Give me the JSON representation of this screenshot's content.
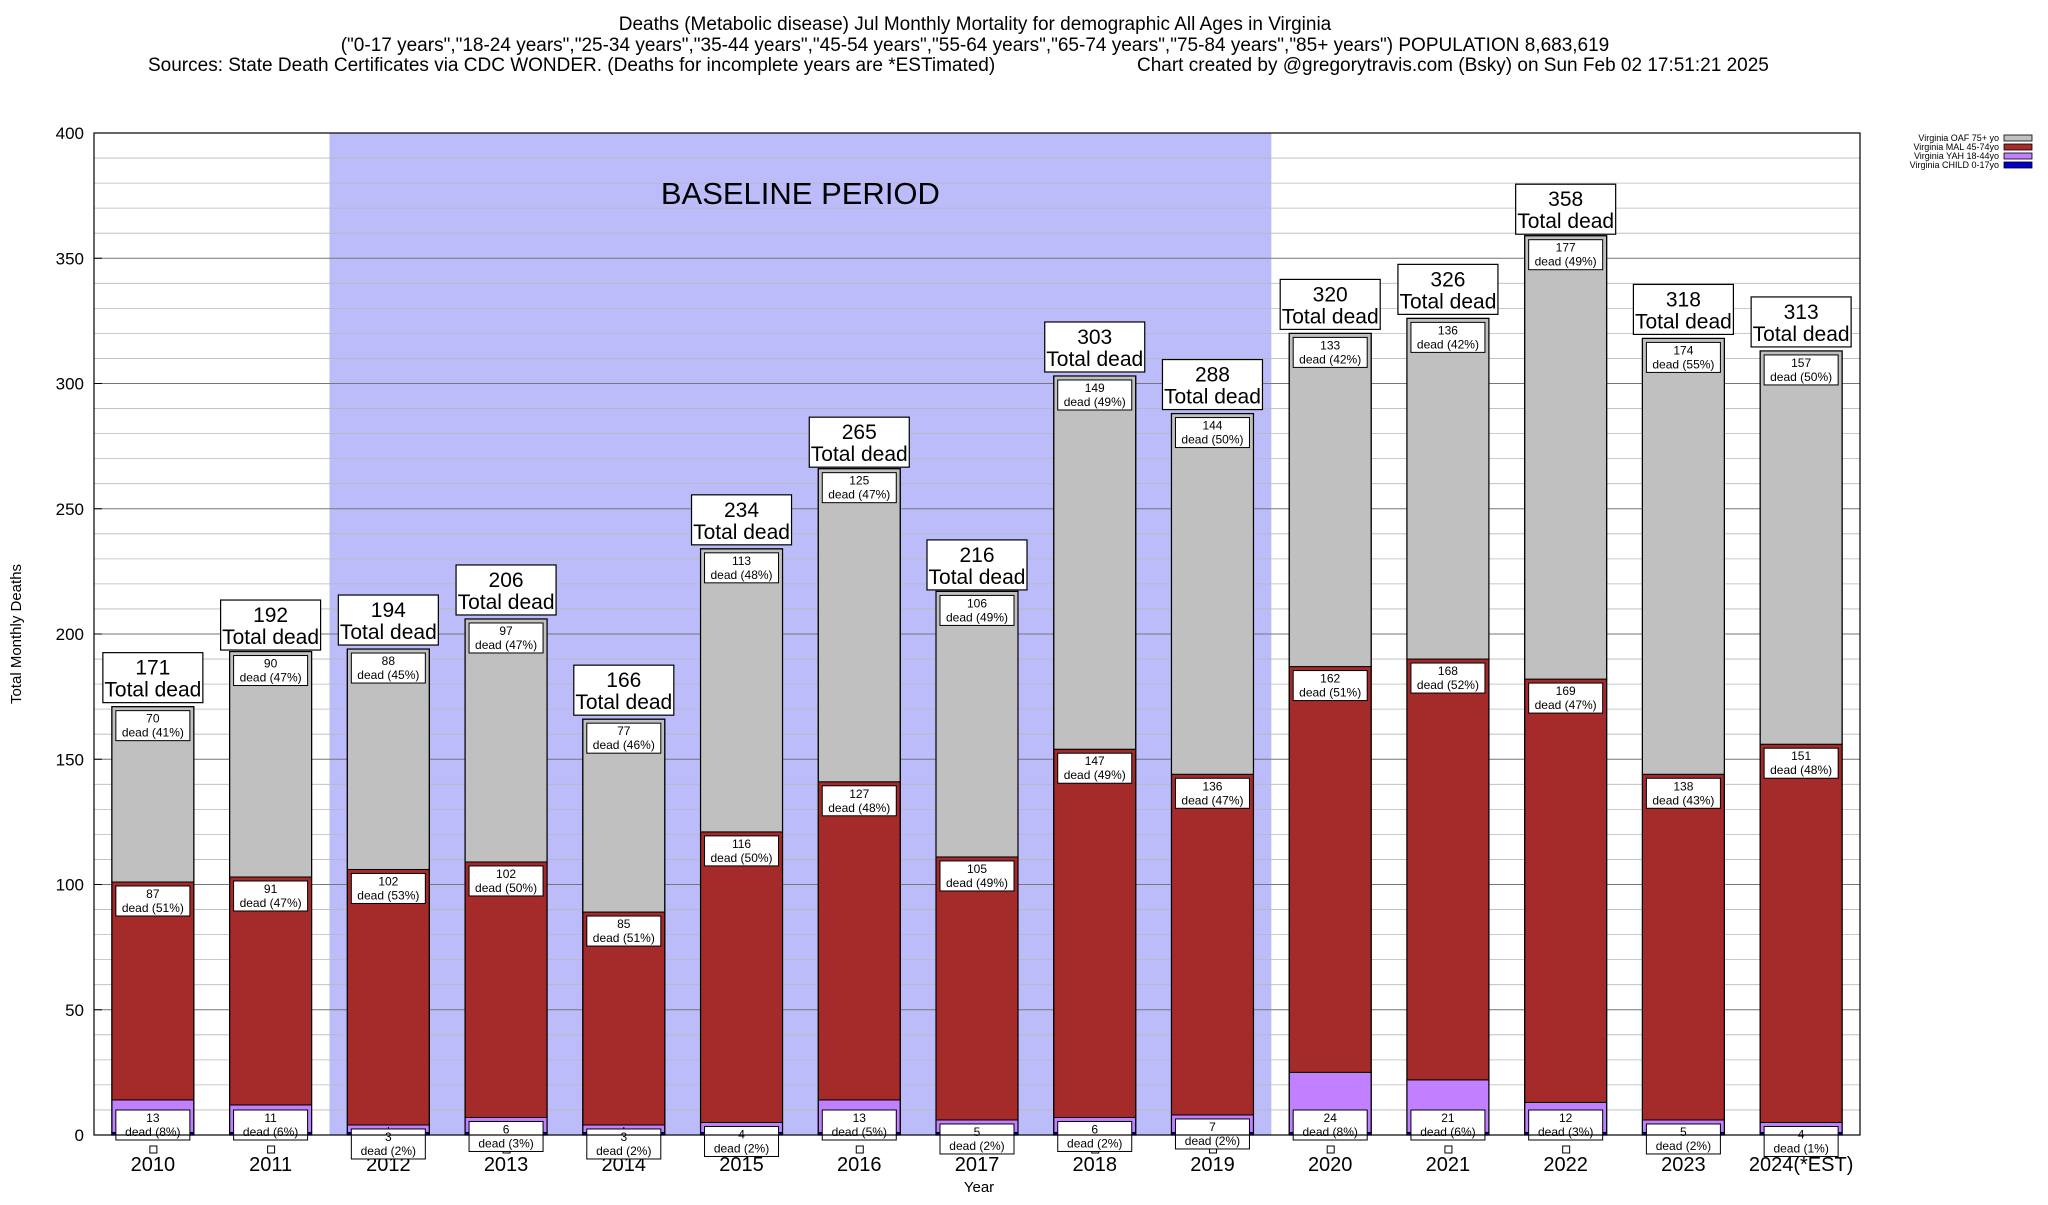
{
  "header": {
    "title": "Deaths (Metabolic disease) Jul Monthly Mortality for demographic All Ages in Virginia",
    "subtitle": "(\"0-17 years\",\"18-24 years\",\"25-34 years\",\"35-44 years\",\"45-54 years\",\"55-64 years\",\"65-74 years\",\"75-84 years\",\"85+ years\") POPULATION 8,683,619",
    "sources": "Sources: State Death Certificates via CDC WONDER. (Deaths for incomplete years are *ESTimated)",
    "credit": "Chart created by @gregorytravis.com (Bsky) on Sun Feb 02 17:51:21 2025"
  },
  "chart_data": {
    "type": "bar",
    "stacked": true,
    "xlabel": "Year",
    "ylabel": "Total Monthly Deaths",
    "ylim": [
      0,
      400
    ],
    "yticks": [
      0,
      50,
      100,
      150,
      200,
      250,
      300,
      350,
      400
    ],
    "grid": true,
    "legend_position": "top-right",
    "total_label_suffix": "Total dead",
    "segment_label_word": "dead",
    "baseline": {
      "label": "BASELINE PERIOD",
      "from": "2012",
      "to": "2019",
      "color": "#bcbcfa"
    },
    "categories": [
      "2010",
      "2011",
      "2012",
      "2013",
      "2014",
      "2015",
      "2016",
      "2017",
      "2018",
      "2019",
      "2020",
      "2021",
      "2022",
      "2023",
      "2024(*EST)"
    ],
    "totals": [
      171,
      192,
      194,
      206,
      166,
      234,
      265,
      216,
      303,
      288,
      320,
      326,
      358,
      318,
      313
    ],
    "series": [
      {
        "name": "Virginia CHILD 0-17yo",
        "color": "#0000c8",
        "values": [
          1,
          1,
          1,
          1,
          1,
          1,
          1,
          1,
          1,
          1,
          1,
          1,
          1,
          1,
          1
        ],
        "labels": [
          "",
          "",
          "",
          "",
          "",
          "",
          "",
          "",
          "",
          "",
          "",
          "",
          "",
          "",
          ""
        ]
      },
      {
        "name": "Virginia YAH 18-44yo",
        "color": "#c080ff",
        "values": [
          13,
          11,
          3,
          6,
          3,
          4,
          13,
          5,
          6,
          7,
          24,
          21,
          12,
          5,
          4
        ],
        "labels": [
          "13",
          "11",
          "3",
          "6",
          "3",
          "4",
          "13",
          "5",
          "6",
          "7",
          "24",
          "21",
          "12",
          "5",
          "4"
        ],
        "pcts": [
          "(8%)",
          "(6%)",
          "(2%)",
          "(3%)",
          "(2%)",
          "(2%)",
          "(5%)",
          "(2%)",
          "(2%)",
          "(2%)",
          "(8%)",
          "(6%)",
          "(3%)",
          "(2%)",
          "(1%)"
        ]
      },
      {
        "name": "Virginia MAL 45-74yo",
        "color": "#a52a2a",
        "values": [
          87,
          91,
          102,
          102,
          85,
          116,
          127,
          105,
          147,
          136,
          162,
          168,
          169,
          138,
          151
        ],
        "labels": [
          "87",
          "91",
          "102",
          "102",
          "85",
          "116",
          "127",
          "105",
          "147",
          "136",
          "162",
          "168",
          "169",
          "138",
          "151"
        ],
        "pcts": [
          "(51%)",
          "(47%)",
          "(53%)",
          "(50%)",
          "(51%)",
          "(50%)",
          "(48%)",
          "(49%)",
          "(49%)",
          "(47%)",
          "(51%)",
          "(52%)",
          "(47%)",
          "(43%)",
          "(48%)"
        ]
      },
      {
        "name": "Virginia OAF 75+ yo",
        "color": "#c0c0c0",
        "values": [
          70,
          90,
          88,
          97,
          77,
          113,
          125,
          106,
          149,
          144,
          133,
          136,
          177,
          174,
          157
        ],
        "labels": [
          "70",
          "90",
          "88",
          "97",
          "77",
          "113",
          "125",
          "106",
          "149",
          "144",
          "133",
          "136",
          "177",
          "174",
          "157"
        ],
        "pcts": [
          "(41%)",
          "(47%)",
          "(45%)",
          "(47%)",
          "(46%)",
          "(48%)",
          "(47%)",
          "(49%)",
          "(49%)",
          "(50%)",
          "(42%)",
          "(42%)",
          "(49%)",
          "(55%)",
          "(50%)"
        ]
      }
    ]
  }
}
